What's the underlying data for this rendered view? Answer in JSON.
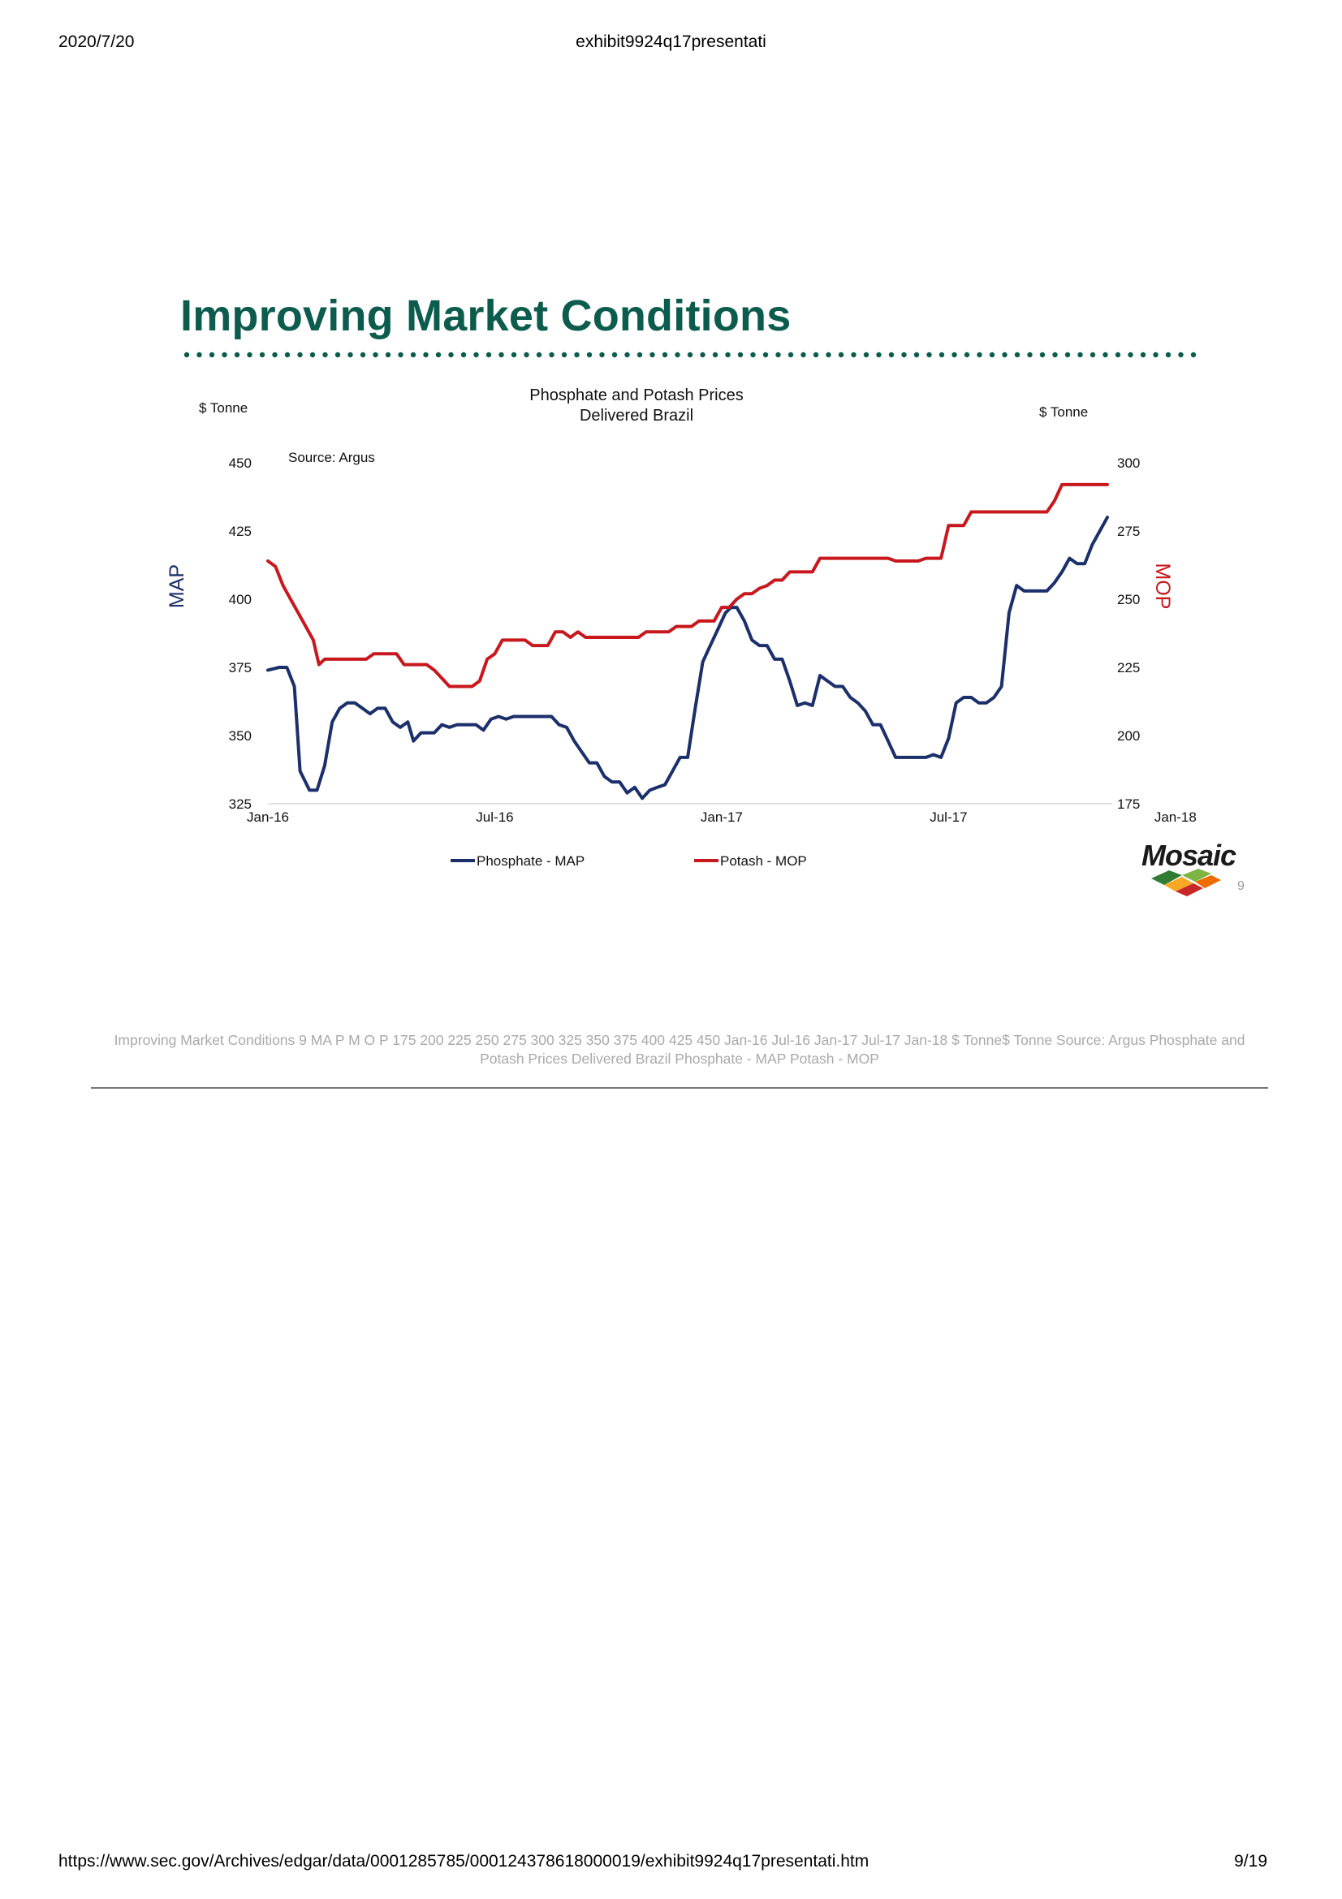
{
  "header": {
    "date": "2020/7/20",
    "doc_title": "exhibit9924q17presentati"
  },
  "slide": {
    "title": "Improving Market Conditions",
    "logo_text": "Mosaic",
    "page_number": "9",
    "accent_color": "#0c5c4d"
  },
  "chart_data": {
    "type": "line",
    "title": "Phosphate and Potash Prices",
    "subtitle": "Delivered Brazil",
    "source": "Source:  Argus",
    "left_unit": "$ Tonne",
    "right_unit": "$ Tonne",
    "left_axis_label": "MAP",
    "right_axis_label": "MOP",
    "left_axis": {
      "min": 325,
      "max": 450,
      "ticks": [
        "325",
        "350",
        "375",
        "400",
        "425",
        "450"
      ]
    },
    "right_axis": {
      "min": 175,
      "max": 300,
      "ticks": [
        "175",
        "200",
        "225",
        "250",
        "275",
        "300"
      ]
    },
    "x_start": "2016-01",
    "x_ticks": [
      {
        "label": "Jan-16",
        "month": 0
      },
      {
        "label": "Jul-16",
        "month": 6
      },
      {
        "label": "Jan-17",
        "month": 12
      },
      {
        "label": "Jul-17",
        "month": 18
      },
      {
        "label": "Jan-18",
        "month": 24
      }
    ],
    "legend_position": "bottom",
    "series": [
      {
        "name": "Phosphate - MAP",
        "axis": "left",
        "color": "#1b2f6b",
        "points": [
          [
            0,
            374
          ],
          [
            0.3,
            375
          ],
          [
            0.5,
            375
          ],
          [
            0.7,
            368
          ],
          [
            0.85,
            337
          ],
          [
            1.1,
            330
          ],
          [
            1.3,
            330
          ],
          [
            1.5,
            339
          ],
          [
            1.7,
            355
          ],
          [
            1.9,
            360
          ],
          [
            2.1,
            362
          ],
          [
            2.3,
            362
          ],
          [
            2.5,
            360
          ],
          [
            2.7,
            358
          ],
          [
            2.9,
            360
          ],
          [
            3.1,
            360
          ],
          [
            3.3,
            355
          ],
          [
            3.5,
            353
          ],
          [
            3.7,
            355
          ],
          [
            3.85,
            348
          ],
          [
            4.05,
            351
          ],
          [
            4.4,
            351
          ],
          [
            4.6,
            354
          ],
          [
            4.8,
            353
          ],
          [
            5.0,
            354
          ],
          [
            5.3,
            354
          ],
          [
            5.5,
            354
          ],
          [
            5.7,
            352
          ],
          [
            5.9,
            356
          ],
          [
            6.1,
            357
          ],
          [
            6.3,
            356
          ],
          [
            6.5,
            357
          ],
          [
            6.8,
            357
          ],
          [
            7.1,
            357
          ],
          [
            7.3,
            357
          ],
          [
            7.5,
            357
          ],
          [
            7.7,
            354
          ],
          [
            7.9,
            353
          ],
          [
            8.1,
            348
          ],
          [
            8.3,
            344
          ],
          [
            8.5,
            340
          ],
          [
            8.7,
            340
          ],
          [
            8.9,
            335
          ],
          [
            9.1,
            333
          ],
          [
            9.3,
            333
          ],
          [
            9.5,
            329
          ],
          [
            9.7,
            331
          ],
          [
            9.9,
            327
          ],
          [
            10.1,
            330
          ],
          [
            10.3,
            331
          ],
          [
            10.5,
            332
          ],
          [
            10.7,
            337
          ],
          [
            10.9,
            342
          ],
          [
            11.1,
            342
          ],
          [
            11.3,
            360
          ],
          [
            11.5,
            377
          ],
          [
            11.7,
            383
          ],
          [
            11.9,
            389
          ],
          [
            12.1,
            395
          ],
          [
            12.25,
            397
          ],
          [
            12.4,
            397
          ],
          [
            12.6,
            392
          ],
          [
            12.8,
            385
          ],
          [
            13.0,
            383
          ],
          [
            13.2,
            383
          ],
          [
            13.4,
            378
          ],
          [
            13.6,
            378
          ],
          [
            13.8,
            370
          ],
          [
            14.0,
            361
          ],
          [
            14.2,
            362
          ],
          [
            14.4,
            361
          ],
          [
            14.6,
            372
          ],
          [
            14.8,
            370
          ],
          [
            15.0,
            368
          ],
          [
            15.2,
            368
          ],
          [
            15.4,
            364
          ],
          [
            15.6,
            362
          ],
          [
            15.8,
            359
          ],
          [
            16.0,
            354
          ],
          [
            16.2,
            354
          ],
          [
            16.4,
            348
          ],
          [
            16.6,
            342
          ],
          [
            16.8,
            342
          ],
          [
            17.0,
            342
          ],
          [
            17.2,
            342
          ],
          [
            17.4,
            342
          ],
          [
            17.6,
            343
          ],
          [
            17.8,
            342
          ],
          [
            18.0,
            349
          ],
          [
            18.2,
            362
          ],
          [
            18.4,
            364
          ],
          [
            18.6,
            364
          ],
          [
            18.8,
            362
          ],
          [
            19.0,
            362
          ],
          [
            19.2,
            364
          ],
          [
            19.4,
            368
          ],
          [
            19.6,
            395
          ],
          [
            19.8,
            405
          ],
          [
            20.0,
            403
          ],
          [
            20.2,
            403
          ],
          [
            20.4,
            403
          ],
          [
            20.6,
            403
          ],
          [
            20.8,
            406
          ],
          [
            21.0,
            410
          ],
          [
            21.2,
            415
          ],
          [
            21.4,
            413
          ],
          [
            21.6,
            413
          ],
          [
            21.8,
            420
          ],
          [
            22.0,
            425
          ],
          [
            22.2,
            430
          ]
        ]
      },
      {
        "name": "Potash - MOP",
        "axis": "right",
        "color": "#c8181e",
        "points": [
          [
            0,
            264
          ],
          [
            0.2,
            262
          ],
          [
            0.4,
            255
          ],
          [
            0.6,
            250
          ],
          [
            0.8,
            245
          ],
          [
            1.0,
            240
          ],
          [
            1.2,
            235
          ],
          [
            1.35,
            226
          ],
          [
            1.5,
            228
          ],
          [
            1.8,
            228
          ],
          [
            2.1,
            228
          ],
          [
            2.4,
            228
          ],
          [
            2.6,
            228
          ],
          [
            2.8,
            230
          ],
          [
            3.1,
            230
          ],
          [
            3.4,
            230
          ],
          [
            3.6,
            226
          ],
          [
            3.9,
            226
          ],
          [
            4.2,
            226
          ],
          [
            4.4,
            224
          ],
          [
            4.6,
            221
          ],
          [
            4.8,
            218
          ],
          [
            5.0,
            218
          ],
          [
            5.2,
            218
          ],
          [
            5.4,
            218
          ],
          [
            5.6,
            220
          ],
          [
            5.8,
            228
          ],
          [
            6.0,
            230
          ],
          [
            6.2,
            235
          ],
          [
            6.4,
            235
          ],
          [
            6.6,
            235
          ],
          [
            6.8,
            235
          ],
          [
            7.0,
            233
          ],
          [
            7.2,
            233
          ],
          [
            7.4,
            233
          ],
          [
            7.6,
            238
          ],
          [
            7.8,
            238
          ],
          [
            8.0,
            236
          ],
          [
            8.2,
            238
          ],
          [
            8.4,
            236
          ],
          [
            8.6,
            236
          ],
          [
            8.8,
            236
          ],
          [
            9.0,
            236
          ],
          [
            9.2,
            236
          ],
          [
            9.4,
            236
          ],
          [
            9.6,
            236
          ],
          [
            9.8,
            236
          ],
          [
            10.0,
            238
          ],
          [
            10.2,
            238
          ],
          [
            10.4,
            238
          ],
          [
            10.6,
            238
          ],
          [
            10.8,
            240
          ],
          [
            11.0,
            240
          ],
          [
            11.2,
            240
          ],
          [
            11.4,
            242
          ],
          [
            11.6,
            242
          ],
          [
            11.8,
            242
          ],
          [
            12.0,
            247
          ],
          [
            12.2,
            247
          ],
          [
            12.4,
            250
          ],
          [
            12.6,
            252
          ],
          [
            12.8,
            252
          ],
          [
            13.0,
            254
          ],
          [
            13.2,
            255
          ],
          [
            13.4,
            257
          ],
          [
            13.6,
            257
          ],
          [
            13.8,
            260
          ],
          [
            14.0,
            260
          ],
          [
            14.2,
            260
          ],
          [
            14.4,
            260
          ],
          [
            14.6,
            265
          ],
          [
            14.8,
            265
          ],
          [
            15.0,
            265
          ],
          [
            15.2,
            265
          ],
          [
            15.4,
            265
          ],
          [
            15.6,
            265
          ],
          [
            15.8,
            265
          ],
          [
            16.0,
            265
          ],
          [
            16.2,
            265
          ],
          [
            16.4,
            265
          ],
          [
            16.6,
            264
          ],
          [
            16.8,
            264
          ],
          [
            17.0,
            264
          ],
          [
            17.2,
            264
          ],
          [
            17.4,
            265
          ],
          [
            17.6,
            265
          ],
          [
            17.8,
            265
          ],
          [
            18.0,
            277
          ],
          [
            18.2,
            277
          ],
          [
            18.4,
            277
          ],
          [
            18.6,
            282
          ],
          [
            18.8,
            282
          ],
          [
            19.0,
            282
          ],
          [
            19.2,
            282
          ],
          [
            19.4,
            282
          ],
          [
            19.6,
            282
          ],
          [
            19.8,
            282
          ],
          [
            20.0,
            282
          ],
          [
            20.2,
            282
          ],
          [
            20.4,
            282
          ],
          [
            20.6,
            282
          ],
          [
            20.8,
            286
          ],
          [
            21.0,
            292
          ],
          [
            21.2,
            292
          ],
          [
            21.4,
            292
          ],
          [
            21.6,
            292
          ],
          [
            21.8,
            292
          ],
          [
            22.0,
            292
          ],
          [
            22.2,
            292
          ]
        ]
      }
    ]
  },
  "alt_text": "Improving Market Conditions 9 MA P M O P 175 200 225 250 275 300 325 350 375 400 425 450 Jan-16 Jul-16 Jan-17 Jul-17 Jan-18 $ Tonne$ Tonne Source: Argus Phosphate and Potash Prices Delivered Brazil Phosphate - MAP Potash - MOP",
  "footer": {
    "url": "https://www.sec.gov/Archives/edgar/data/0001285785/000124378618000019/exhibit9924q17presentati.htm",
    "page": "9/19"
  }
}
